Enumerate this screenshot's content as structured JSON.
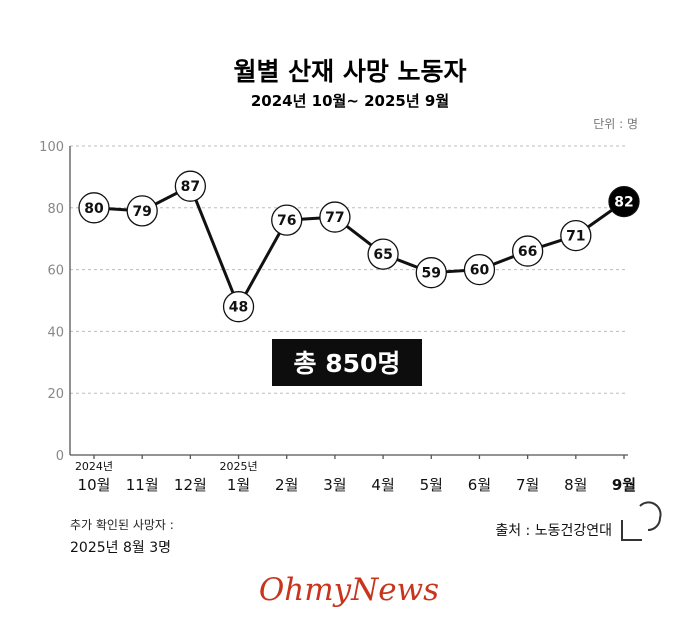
{
  "header": {
    "title": "월별 산재 사망 노동자",
    "subtitle": "2024년 10월~ 2025년 9월",
    "unit": "단위 : 명"
  },
  "chart_data": {
    "type": "line",
    "title": "월별 산재 사망 노동자",
    "categories": [
      "10월",
      "11월",
      "12월",
      "1월",
      "2월",
      "3월",
      "4월",
      "5월",
      "6월",
      "7월",
      "8월",
      "9월"
    ],
    "year_labels": {
      "0": "2024년",
      "3": "2025년"
    },
    "values": [
      80,
      79,
      87,
      48,
      76,
      77,
      65,
      59,
      60,
      66,
      71,
      82
    ],
    "highlight_index": 11,
    "ylim": [
      0,
      100
    ],
    "yticks": [
      0,
      20,
      40,
      60,
      80,
      100
    ],
    "grid": true,
    "line_color": "#111111",
    "highlight_color": "#000000"
  },
  "total_box": {
    "text": "총 850명"
  },
  "footnote": {
    "line1": "추가 확인된 사망자 :",
    "line2": "2025년 8월 3명"
  },
  "source": {
    "text": "출처 : 노동건강연대"
  },
  "brand": {
    "text": "OhmyNews",
    "color": "#c8341c"
  }
}
